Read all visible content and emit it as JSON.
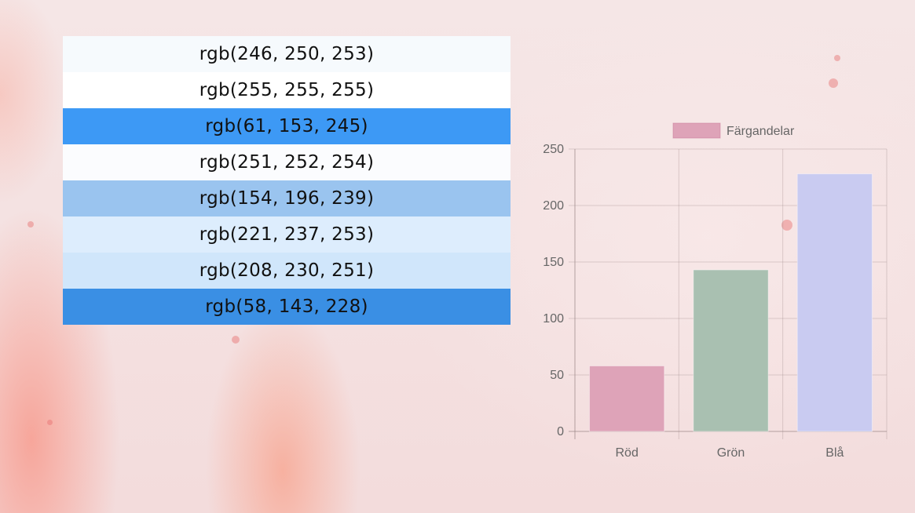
{
  "swatches": [
    {
      "label": "rgb(246, 250, 253)",
      "color": "#f6fafd"
    },
    {
      "label": "rgb(255, 255, 255)",
      "color": "#ffffff"
    },
    {
      "label": "rgb(61, 153, 245)",
      "color": "#3d99f5"
    },
    {
      "label": "rgb(251, 252, 254)",
      "color": "#fbfcfe"
    },
    {
      "label": "rgb(154, 196, 239)",
      "color": "#9ac4ef"
    },
    {
      "label": "rgb(221, 237, 253)",
      "color": "#ddedfd"
    },
    {
      "label": "rgb(208, 230, 251)",
      "color": "#d0e6fb"
    },
    {
      "label": "rgb(58, 143, 228)",
      "color": "#3a8fe4"
    }
  ],
  "chart_data": {
    "type": "bar",
    "categories": [
      "Röd",
      "Grön",
      "Blå"
    ],
    "series": [
      {
        "name": "Färgandelar",
        "values": [
          58,
          143,
          228
        ],
        "colors": [
          "#dea3b8",
          "#a9c0b1",
          "#c9cbf1"
        ],
        "legend_color": "#dea3b8"
      }
    ],
    "ylim": [
      0,
      250
    ],
    "yticks": [
      0,
      50,
      100,
      150,
      200,
      250
    ],
    "grid": true,
    "legend_position": "top"
  }
}
